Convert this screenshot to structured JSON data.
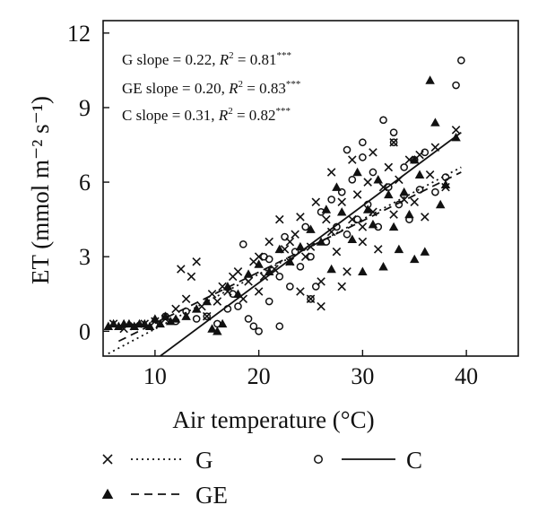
{
  "chart_data": {
    "type": "scatter",
    "xlabel": "Air temperature (°C)",
    "ylabel": "ET (mmol m⁻² s⁻¹)",
    "xlim": [
      5,
      45
    ],
    "ylim": [
      -1,
      12.5
    ],
    "x_ticks": [
      10,
      20,
      30,
      40
    ],
    "y_ticks": [
      0,
      3,
      6,
      9,
      12
    ],
    "grid": false,
    "legend_position": "bottom",
    "annotations": [
      {
        "lead": "G slope = 0.22, ",
        "r2": "R",
        "sup1": "2",
        "mid": " = 0.81",
        "sup2": "***"
      },
      {
        "lead": "GE slope = 0.20, ",
        "r2": "R",
        "sup1": "2",
        "mid": " = 0.83",
        "sup2": "***"
      },
      {
        "lead": "C slope = 0.31, ",
        "r2": "R",
        "sup1": "2",
        "mid": " = 0.82",
        "sup2": "***"
      }
    ],
    "series": [
      {
        "name": "G",
        "marker": "x",
        "line_style": "dotted",
        "fit": {
          "slope": 0.22,
          "x_range": [
            5.5,
            39.5
          ],
          "y_range": [
            -0.9,
            6.6
          ]
        },
        "points": [
          [
            6,
            0.3
          ],
          [
            7,
            0.1
          ],
          [
            8,
            0.2
          ],
          [
            9,
            0.3
          ],
          [
            10,
            0.4
          ],
          [
            11,
            0.5
          ],
          [
            12,
            0.9
          ],
          [
            12.5,
            2.5
          ],
          [
            13,
            1.3
          ],
          [
            13.5,
            2.2
          ],
          [
            14,
            2.8
          ],
          [
            14.5,
            1.0
          ],
          [
            15,
            0.6
          ],
          [
            15.5,
            1.5
          ],
          [
            16,
            1.2
          ],
          [
            16.5,
            1.8
          ],
          [
            17,
            1.6
          ],
          [
            17.5,
            2.2
          ],
          [
            18,
            2.4
          ],
          [
            18.5,
            1.3
          ],
          [
            19,
            2.0
          ],
          [
            19.5,
            2.8
          ],
          [
            20,
            3.0
          ],
          [
            20.5,
            2.2
          ],
          [
            21,
            3.6
          ],
          [
            21.5,
            2.5
          ],
          [
            22,
            4.5
          ],
          [
            22.5,
            3.3
          ],
          [
            23,
            2.8
          ],
          [
            23.5,
            3.9
          ],
          [
            24,
            4.6
          ],
          [
            24.5,
            3.0
          ],
          [
            25,
            3.4
          ],
          [
            25.5,
            5.2
          ],
          [
            26,
            2.0
          ],
          [
            26.5,
            4.5
          ],
          [
            27,
            4.0
          ],
          [
            27.5,
            3.2
          ],
          [
            28,
            5.2
          ],
          [
            28.5,
            2.4
          ],
          [
            29,
            4.5
          ],
          [
            29.5,
            5.5
          ],
          [
            30,
            3.6
          ],
          [
            30.5,
            6.0
          ],
          [
            31,
            4.8
          ],
          [
            31.5,
            3.3
          ],
          [
            32,
            5.8
          ],
          [
            32.5,
            6.6
          ],
          [
            33,
            4.7
          ],
          [
            33.5,
            6.1
          ],
          [
            34,
            5.3
          ],
          [
            34.5,
            6.9
          ],
          [
            35,
            5.2
          ],
          [
            35.5,
            7.1
          ],
          [
            36,
            4.6
          ],
          [
            36.5,
            6.3
          ],
          [
            37,
            7.4
          ],
          [
            38,
            5.8
          ],
          [
            39,
            8.1
          ],
          [
            27,
            6.4
          ],
          [
            29,
            6.9
          ],
          [
            24,
            1.6
          ],
          [
            25,
            1.3
          ],
          [
            26,
            1.0
          ],
          [
            28,
            1.8
          ],
          [
            31,
            7.2
          ],
          [
            33,
            7.6
          ],
          [
            20,
            1.6
          ],
          [
            23,
            3.6
          ],
          [
            30,
            4.2
          ]
        ]
      },
      {
        "name": "GE",
        "marker": "triangle",
        "line_style": "dashed",
        "fit": {
          "slope": 0.2,
          "x_range": [
            6.5,
            39.5
          ],
          "y_range": [
            -0.4,
            6.4
          ]
        },
        "points": [
          [
            5.5,
            0.2
          ],
          [
            6,
            0.3
          ],
          [
            6.5,
            0.2
          ],
          [
            7,
            0.3
          ],
          [
            7.5,
            0.3
          ],
          [
            8,
            0.2
          ],
          [
            8.5,
            0.3
          ],
          [
            9,
            0.3
          ],
          [
            9.5,
            0.2
          ],
          [
            10,
            0.5
          ],
          [
            10.5,
            0.3
          ],
          [
            11,
            0.6
          ],
          [
            11.5,
            0.4
          ],
          [
            12,
            0.5
          ],
          [
            13,
            0.6
          ],
          [
            14,
            0.9
          ],
          [
            15,
            1.2
          ],
          [
            15.5,
            0.1
          ],
          [
            16,
            0.0
          ],
          [
            16.5,
            0.3
          ],
          [
            17,
            1.8
          ],
          [
            18,
            1.5
          ],
          [
            19,
            2.3
          ],
          [
            20,
            2.7
          ],
          [
            21,
            2.4
          ],
          [
            22,
            3.3
          ],
          [
            23,
            2.8
          ],
          [
            24,
            3.4
          ],
          [
            25,
            4.1
          ],
          [
            26,
            3.6
          ],
          [
            27,
            2.5
          ],
          [
            28,
            4.8
          ],
          [
            29,
            3.7
          ],
          [
            30,
            2.4
          ],
          [
            30.5,
            4.9
          ],
          [
            31,
            4.3
          ],
          [
            32,
            2.6
          ],
          [
            32.5,
            5.5
          ],
          [
            33,
            4.2
          ],
          [
            33.5,
            3.3
          ],
          [
            34,
            5.6
          ],
          [
            34.5,
            4.7
          ],
          [
            35,
            2.9
          ],
          [
            35.5,
            6.3
          ],
          [
            36,
            3.2
          ],
          [
            36.5,
            10.1
          ],
          [
            37,
            8.4
          ],
          [
            37.5,
            5.1
          ],
          [
            38,
            5.9
          ],
          [
            39,
            7.8
          ],
          [
            29.5,
            6.4
          ],
          [
            27.5,
            5.8
          ],
          [
            26.5,
            4.9
          ],
          [
            31.5,
            6.1
          ],
          [
            35,
            6.9
          ]
        ]
      },
      {
        "name": "C",
        "marker": "circle",
        "line_style": "solid",
        "fit": {
          "slope": 0.31,
          "x_range": [
            10.5,
            39.5
          ],
          "y_range": [
            -1.0,
            8.0
          ]
        },
        "points": [
          [
            11,
            0.6
          ],
          [
            12,
            0.4
          ],
          [
            13,
            0.8
          ],
          [
            14,
            0.5
          ],
          [
            15,
            0.6
          ],
          [
            16,
            0.3
          ],
          [
            17,
            0.9
          ],
          [
            18,
            1.0
          ],
          [
            18.5,
            3.5
          ],
          [
            19,
            0.5
          ],
          [
            19.5,
            0.2
          ],
          [
            20,
            0.0
          ],
          [
            20.5,
            3.0
          ],
          [
            21,
            1.2
          ],
          [
            22,
            2.2
          ],
          [
            22.5,
            3.8
          ],
          [
            23,
            1.8
          ],
          [
            23.5,
            3.2
          ],
          [
            24,
            2.6
          ],
          [
            24.5,
            4.2
          ],
          [
            25,
            3.0
          ],
          [
            25.5,
            1.8
          ],
          [
            26,
            4.8
          ],
          [
            26.5,
            3.6
          ],
          [
            27,
            5.3
          ],
          [
            27.5,
            4.2
          ],
          [
            28,
            5.6
          ],
          [
            28.5,
            3.9
          ],
          [
            29,
            6.1
          ],
          [
            29.5,
            4.5
          ],
          [
            30,
            7.0
          ],
          [
            30.5,
            5.1
          ],
          [
            31,
            6.4
          ],
          [
            31.5,
            4.2
          ],
          [
            32,
            8.5
          ],
          [
            32.5,
            5.8
          ],
          [
            33,
            7.6
          ],
          [
            33.5,
            5.1
          ],
          [
            34,
            6.6
          ],
          [
            34.5,
            4.5
          ],
          [
            35,
            6.9
          ],
          [
            35.5,
            5.7
          ],
          [
            36,
            7.2
          ],
          [
            37,
            5.6
          ],
          [
            38,
            6.2
          ],
          [
            39,
            9.9
          ],
          [
            39.5,
            10.9
          ],
          [
            28.5,
            7.3
          ],
          [
            30,
            7.6
          ],
          [
            33,
            8.0
          ],
          [
            21,
            2.9
          ],
          [
            17.5,
            1.5
          ],
          [
            22,
            0.2
          ],
          [
            25,
            1.3
          ]
        ]
      }
    ]
  },
  "legend": [
    {
      "name": "G",
      "marker": "x",
      "line": "dotted"
    },
    {
      "name": "GE",
      "marker": "triangle",
      "line": "dashed"
    },
    {
      "name": "C",
      "marker": "circle",
      "line": "solid"
    }
  ],
  "colors": {
    "ink": "#111111",
    "background": "#ffffff"
  }
}
